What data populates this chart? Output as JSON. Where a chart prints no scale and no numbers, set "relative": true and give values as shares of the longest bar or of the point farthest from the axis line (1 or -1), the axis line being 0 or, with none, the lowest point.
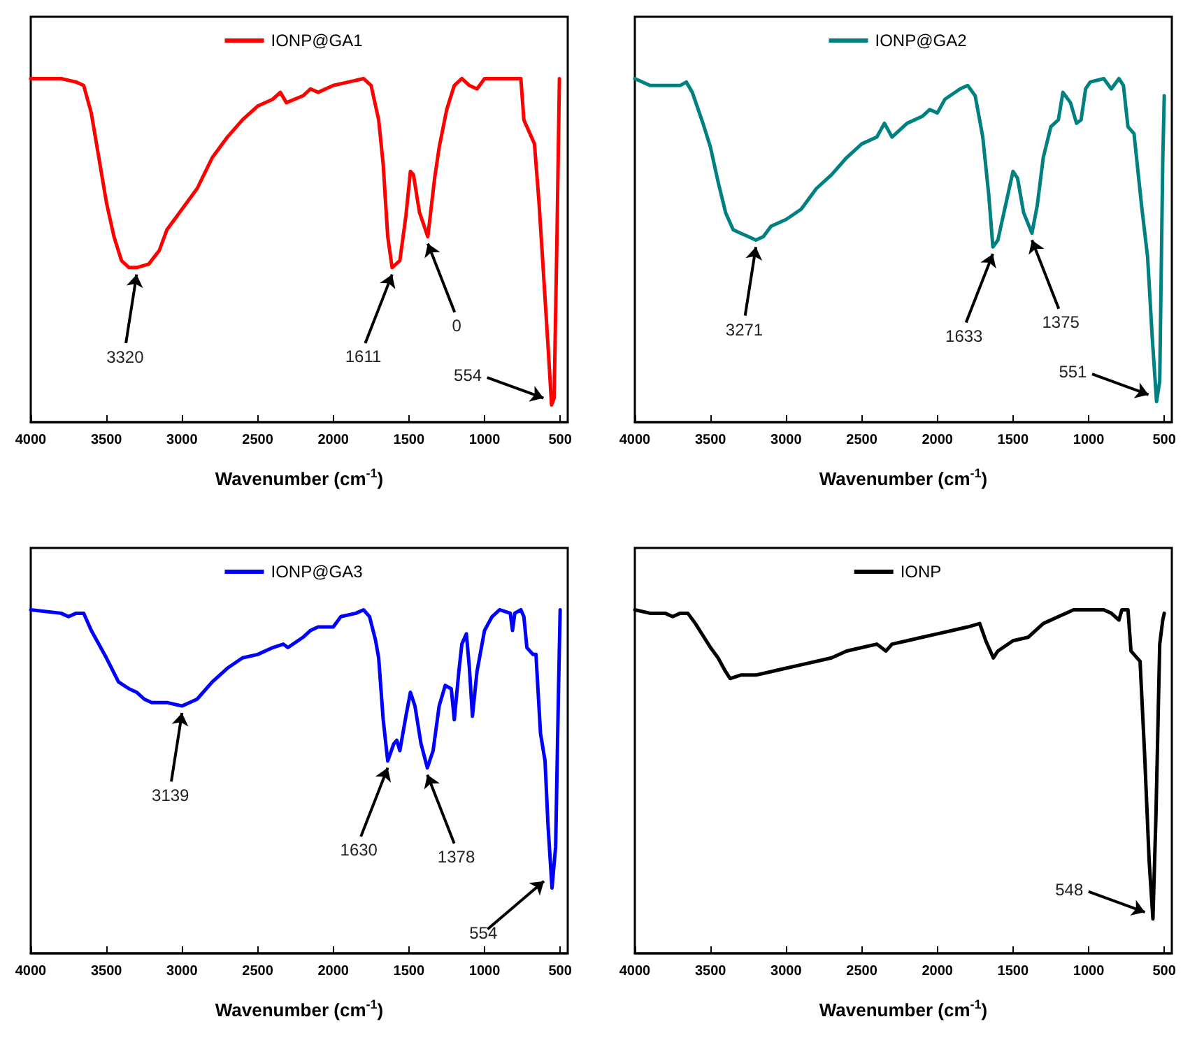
{
  "chart_data": [
    {
      "type": "line",
      "relative": true,
      "xlabel": "Wavenumber (cm$^{-1}$)",
      "xlim": [
        4000,
        450
      ],
      "xticks": [
        4000,
        3500,
        3000,
        2500,
        2000,
        1500,
        1000,
        500
      ],
      "grid": false,
      "legend": "top",
      "marker": "none",
      "line_style": "solid",
      "x": [
        4000,
        3800,
        3700,
        3650,
        3600,
        3550,
        3500,
        3450,
        3400,
        3350,
        3300,
        3220,
        3150,
        3100,
        3000,
        2900,
        2800,
        2700,
        2600,
        2500,
        2400,
        2350,
        2310,
        2200,
        2150,
        2100,
        2000,
        1900,
        1800,
        1750,
        1700,
        1670,
        1640,
        1611,
        1560,
        1520,
        1490,
        1470,
        1430,
        1375,
        1330,
        1300,
        1250,
        1200,
        1150,
        1100,
        1050,
        1000,
        900,
        800,
        760,
        740,
        700,
        670,
        640,
        610,
        580,
        557,
        540,
        520,
        505,
        500
      ],
      "series": [
        {
          "name": "IONP@GA1",
          "color": "#ff0000",
          "values": [
            1.0,
            1.0,
            0.99,
            0.98,
            0.9,
            0.77,
            0.64,
            0.54,
            0.47,
            0.45,
            0.45,
            0.46,
            0.5,
            0.56,
            0.62,
            0.68,
            0.77,
            0.83,
            0.88,
            0.92,
            0.94,
            0.96,
            0.93,
            0.95,
            0.97,
            0.96,
            0.98,
            0.99,
            1.0,
            0.98,
            0.88,
            0.75,
            0.54,
            0.45,
            0.47,
            0.6,
            0.73,
            0.72,
            0.61,
            0.54,
            0.71,
            0.8,
            0.91,
            0.98,
            1.0,
            0.98,
            0.97,
            1.0,
            1.0,
            1.0,
            1.0,
            0.88,
            0.84,
            0.81,
            0.64,
            0.43,
            0.22,
            0.05,
            0.07,
            0.57,
            1.0,
            1.0
          ]
        }
      ],
      "annotations": [
        {
          "text": "3320",
          "x": 3300,
          "y": 0.45
        },
        {
          "text": "1611",
          "x": 1611,
          "y": 0.45
        },
        {
          "text": "0",
          "x": 1375,
          "y": 0.54
        },
        {
          "text": "554",
          "x": 557,
          "y": 0.05
        }
      ]
    },
    {
      "type": "line",
      "relative": true,
      "xlabel": "Wavenumber (cm$^{-1}$)",
      "xlim": [
        4000,
        450
      ],
      "xticks": [
        4000,
        3500,
        3000,
        2500,
        2000,
        1500,
        1000,
        500
      ],
      "grid": false,
      "legend": "top",
      "marker": "none",
      "line_style": "solid",
      "x": [
        4000,
        3900,
        3750,
        3700,
        3660,
        3620,
        3550,
        3500,
        3450,
        3400,
        3350,
        3300,
        3250,
        3200,
        3150,
        3100,
        3000,
        2900,
        2800,
        2700,
        2600,
        2500,
        2400,
        2350,
        2300,
        2200,
        2100,
        2050,
        2000,
        1950,
        1850,
        1800,
        1750,
        1700,
        1660,
        1633,
        1600,
        1550,
        1500,
        1470,
        1430,
        1375,
        1340,
        1300,
        1250,
        1200,
        1170,
        1120,
        1080,
        1050,
        1020,
        990,
        900,
        850,
        800,
        770,
        740,
        700,
        650,
        610,
        580,
        551,
        530,
        510,
        500
      ],
      "series": [
        {
          "name": "IONP@GA2",
          "color": "#008080",
          "values": [
            1.0,
            0.98,
            0.98,
            0.98,
            0.99,
            0.96,
            0.87,
            0.8,
            0.7,
            0.61,
            0.56,
            0.55,
            0.54,
            0.53,
            0.54,
            0.57,
            0.59,
            0.62,
            0.68,
            0.72,
            0.77,
            0.81,
            0.83,
            0.87,
            0.83,
            0.87,
            0.89,
            0.91,
            0.9,
            0.94,
            0.97,
            0.98,
            0.95,
            0.83,
            0.66,
            0.51,
            0.53,
            0.63,
            0.73,
            0.71,
            0.61,
            0.55,
            0.63,
            0.77,
            0.86,
            0.88,
            0.96,
            0.93,
            0.87,
            0.88,
            0.97,
            0.99,
            1.0,
            0.97,
            1.0,
            0.98,
            0.86,
            0.84,
            0.63,
            0.48,
            0.25,
            0.06,
            0.12,
            0.76,
            0.95
          ]
        }
      ],
      "annotations": [
        {
          "text": "3271",
          "x": 3200,
          "y": 0.53
        },
        {
          "text": "1633",
          "x": 1633,
          "y": 0.51
        },
        {
          "text": "1375",
          "x": 1375,
          "y": 0.55
        },
        {
          "text": "551",
          "x": 551,
          "y": 0.06
        }
      ]
    },
    {
      "type": "line",
      "relative": true,
      "xlabel": "Wavenumber (cm$^{-1}$)",
      "xlim": [
        4000,
        450
      ],
      "xticks": [
        4000,
        3500,
        3000,
        2500,
        2000,
        1500,
        1000,
        500
      ],
      "grid": false,
      "legend": "top",
      "marker": "none",
      "line_style": "solid",
      "x": [
        4000,
        3800,
        3750,
        3700,
        3650,
        3600,
        3500,
        3420,
        3350,
        3300,
        3250,
        3200,
        3100,
        3000,
        2950,
        2900,
        2800,
        2700,
        2600,
        2500,
        2400,
        2330,
        2300,
        2200,
        2150,
        2100,
        2050,
        2000,
        1950,
        1850,
        1800,
        1760,
        1720,
        1700,
        1670,
        1640,
        1600,
        1580,
        1560,
        1520,
        1490,
        1460,
        1420,
        1378,
        1340,
        1300,
        1260,
        1220,
        1200,
        1170,
        1150,
        1120,
        1100,
        1080,
        1050,
        1000,
        950,
        900,
        830,
        815,
        800,
        760,
        740,
        720,
        680,
        660,
        630,
        600,
        580,
        554,
        530,
        510,
        500
      ],
      "series": [
        {
          "name": "IONP@GA3",
          "color": "#0000ff",
          "values": [
            1.0,
            0.99,
            0.98,
            0.99,
            0.99,
            0.94,
            0.86,
            0.79,
            0.77,
            0.76,
            0.74,
            0.73,
            0.73,
            0.72,
            0.73,
            0.74,
            0.79,
            0.83,
            0.86,
            0.87,
            0.89,
            0.9,
            0.89,
            0.92,
            0.94,
            0.95,
            0.95,
            0.95,
            0.98,
            0.99,
            1.0,
            0.98,
            0.91,
            0.86,
            0.68,
            0.56,
            0.61,
            0.62,
            0.59,
            0.69,
            0.76,
            0.72,
            0.61,
            0.54,
            0.59,
            0.72,
            0.78,
            0.77,
            0.68,
            0.82,
            0.9,
            0.93,
            0.83,
            0.69,
            0.82,
            0.94,
            0.98,
            1.0,
            0.99,
            0.94,
            0.99,
            1.0,
            0.98,
            0.89,
            0.87,
            0.87,
            0.64,
            0.56,
            0.37,
            0.19,
            0.31,
            0.79,
            1.0
          ]
        }
      ],
      "annotations": [
        {
          "text": "3139",
          "x": 3000,
          "y": 0.72
        },
        {
          "text": "1630",
          "x": 1640,
          "y": 0.56
        },
        {
          "text": "1378",
          "x": 1378,
          "y": 0.54
        },
        {
          "text": "554",
          "x": 554,
          "y": 0.19
        }
      ]
    },
    {
      "type": "line",
      "relative": true,
      "xlabel": "Wavenumber (cm$^{-1}$)",
      "xlim": [
        4000,
        450
      ],
      "xticks": [
        4000,
        3500,
        3000,
        2500,
        2000,
        1500,
        1000,
        500
      ],
      "grid": false,
      "legend": "top",
      "marker": "none",
      "line_style": "solid",
      "x": [
        4000,
        3900,
        3800,
        3750,
        3700,
        3650,
        3600,
        3500,
        3450,
        3400,
        3370,
        3300,
        3200,
        3100,
        3000,
        2900,
        2800,
        2700,
        2600,
        2500,
        2400,
        2340,
        2300,
        2200,
        2100,
        2000,
        1900,
        1800,
        1720,
        1680,
        1630,
        1600,
        1500,
        1400,
        1300,
        1200,
        1100,
        1000,
        900,
        850,
        800,
        780,
        740,
        720,
        680,
        660,
        630,
        600,
        575,
        555,
        530,
        510,
        500
      ],
      "series": [
        {
          "name": "IONP",
          "color": "#000000",
          "values": [
            1.0,
            0.99,
            0.99,
            0.98,
            0.99,
            0.99,
            0.96,
            0.89,
            0.86,
            0.82,
            0.8,
            0.81,
            0.81,
            0.82,
            0.83,
            0.84,
            0.85,
            0.86,
            0.88,
            0.89,
            0.9,
            0.88,
            0.9,
            0.91,
            0.92,
            0.93,
            0.94,
            0.95,
            0.96,
            0.91,
            0.86,
            0.88,
            0.91,
            0.92,
            0.96,
            0.98,
            1.0,
            1.0,
            1.0,
            0.99,
            0.97,
            1.0,
            1.0,
            0.88,
            0.86,
            0.85,
            0.58,
            0.27,
            0.1,
            0.4,
            0.9,
            0.97,
            0.99
          ]
        }
      ],
      "annotations": [
        {
          "text": "548",
          "x": 575,
          "y": 0.1
        }
      ]
    }
  ]
}
